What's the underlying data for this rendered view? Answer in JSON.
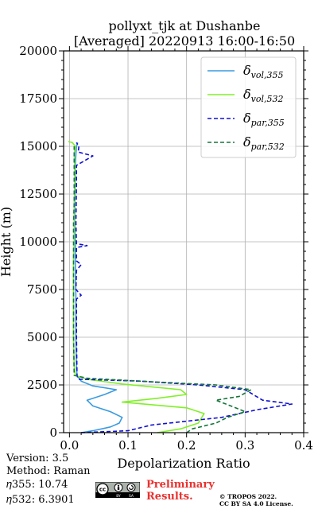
{
  "chart_data": {
    "type": "line",
    "title": [
      "pollyxt_tjk at Dushanbe",
      "[Averaged] 20220913 16:00-16:50"
    ],
    "xlabel": "Depolarization Ratio",
    "ylabel": "Height (m)",
    "xlim": [
      -0.01,
      0.4
    ],
    "ylim": [
      0,
      20000
    ],
    "xticks": [
      0.0,
      0.1,
      0.2,
      0.3,
      0.4
    ],
    "xtick_labels": [
      "0.0",
      "0.1",
      "0.2",
      "0.3",
      "0.4"
    ],
    "yticks": [
      0,
      2500,
      5000,
      7500,
      10000,
      12500,
      15000,
      17500,
      20000
    ],
    "ytick_labels": [
      "0",
      "2500",
      "5000",
      "7500",
      "10000",
      "12500",
      "15000",
      "17500",
      "20000"
    ],
    "grid": true,
    "legend_position": "top-right",
    "series": [
      {
        "name": "δvol,355",
        "label_main": "δ",
        "label_sub": "vol,355",
        "color": "#3a9be0",
        "dash": "solid",
        "points": [
          [
            0.02,
            0
          ],
          [
            0.04,
            100
          ],
          [
            0.07,
            300
          ],
          [
            0.085,
            500
          ],
          [
            0.09,
            800
          ],
          [
            0.07,
            1100
          ],
          [
            0.04,
            1400
          ],
          [
            0.03,
            1700
          ],
          [
            0.06,
            2000
          ],
          [
            0.08,
            2250
          ],
          [
            0.04,
            2450
          ],
          [
            0.02,
            2700
          ],
          [
            0.013,
            3000
          ],
          [
            0.012,
            3500
          ],
          [
            0.011,
            5000
          ],
          [
            0.011,
            7000
          ],
          [
            0.01,
            9000
          ],
          [
            0.01,
            10000
          ],
          [
            0.009,
            11000
          ],
          [
            0.009,
            12000
          ],
          [
            0.01,
            13000
          ],
          [
            0.01,
            14000
          ],
          [
            0.011,
            14600
          ],
          [
            0.012,
            15000
          ],
          [
            0.014,
            15200
          ]
        ]
      },
      {
        "name": "δvol,532",
        "label_main": "δ",
        "label_sub": "vol,532",
        "color": "#80f028",
        "dash": "solid",
        "points": [
          [
            0.15,
            0
          ],
          [
            0.19,
            200
          ],
          [
            0.22,
            500
          ],
          [
            0.23,
            1000
          ],
          [
            0.2,
            1300
          ],
          [
            0.09,
            1600
          ],
          [
            0.15,
            1800
          ],
          [
            0.2,
            2000
          ],
          [
            0.19,
            2250
          ],
          [
            0.09,
            2550
          ],
          [
            0.03,
            2800
          ],
          [
            0.01,
            3000
          ],
          [
            0.008,
            3500
          ],
          [
            0.007,
            5000
          ],
          [
            0.007,
            7000
          ],
          [
            0.007,
            9000
          ],
          [
            0.008,
            10000
          ],
          [
            0.008,
            11000
          ],
          [
            0.008,
            12000
          ],
          [
            0.009,
            13000
          ],
          [
            0.009,
            14000
          ],
          [
            0.008,
            14600
          ],
          [
            0.01,
            15000
          ],
          [
            0.005,
            15200
          ],
          [
            -0.002,
            15250
          ]
        ]
      },
      {
        "name": "δpar,355",
        "label_main": "δ",
        "label_sub": "par,355",
        "color": "#1010d0",
        "dash": "dash",
        "points": [
          [
            0.02,
            0
          ],
          [
            0.1,
            100
          ],
          [
            0.14,
            400
          ],
          [
            0.26,
            800
          ],
          [
            0.32,
            1200
          ],
          [
            0.38,
            1500
          ],
          [
            0.33,
            1700
          ],
          [
            0.3,
            2250
          ],
          [
            0.22,
            2500
          ],
          [
            0.12,
            2700
          ],
          [
            0.015,
            2800
          ],
          [
            0.013,
            3000
          ],
          [
            0.012,
            5000
          ],
          [
            0.012,
            7000
          ],
          [
            0.02,
            7200
          ],
          [
            0.011,
            7500
          ],
          [
            0.012,
            8500
          ],
          [
            0.02,
            8800
          ],
          [
            0.012,
            9000
          ],
          [
            0.012,
            9700
          ],
          [
            0.03,
            9800
          ],
          [
            0.012,
            9900
          ],
          [
            0.011,
            11000
          ],
          [
            0.012,
            13000
          ],
          [
            0.012,
            14000
          ],
          [
            0.04,
            14500
          ],
          [
            0.015,
            14700
          ],
          [
            0.016,
            15000
          ],
          [
            0.012,
            15200
          ]
        ]
      },
      {
        "name": "δpar,532",
        "label_main": "δ",
        "label_sub": "par,532",
        "color": "#15753a",
        "dash": "dash",
        "points": [
          [
            0.2,
            0
          ],
          [
            0.21,
            200
          ],
          [
            0.25,
            500
          ],
          [
            0.27,
            800
          ],
          [
            0.3,
            1100
          ],
          [
            0.28,
            1350
          ],
          [
            0.25,
            1700
          ],
          [
            0.29,
            1900
          ],
          [
            0.31,
            2250
          ],
          [
            0.25,
            2500
          ],
          [
            0.15,
            2650
          ],
          [
            0.03,
            2850
          ],
          [
            0.008,
            3000
          ],
          [
            0.007,
            5000
          ],
          [
            0.007,
            7000
          ],
          [
            0.007,
            9000
          ],
          [
            0.007,
            11000
          ],
          [
            0.008,
            12000
          ],
          [
            0.008,
            13000
          ],
          [
            0.008,
            14000
          ],
          [
            0.008,
            15000
          ]
        ]
      }
    ]
  },
  "info": {
    "version": "Version: 3.5",
    "method": "Method: Raman",
    "eta355": "𝜂355:  10.74",
    "eta532": "𝜂532: 6.3901"
  },
  "footer": {
    "preliminary_line1": "Preliminary",
    "preliminary_line2": "Results.",
    "copyright_line1": "© TROPOS 2022.",
    "copyright_line2": "CC BY SA 4.0 License."
  },
  "badge": {
    "cc": "cc",
    "by": "BY",
    "sa": "SA"
  }
}
